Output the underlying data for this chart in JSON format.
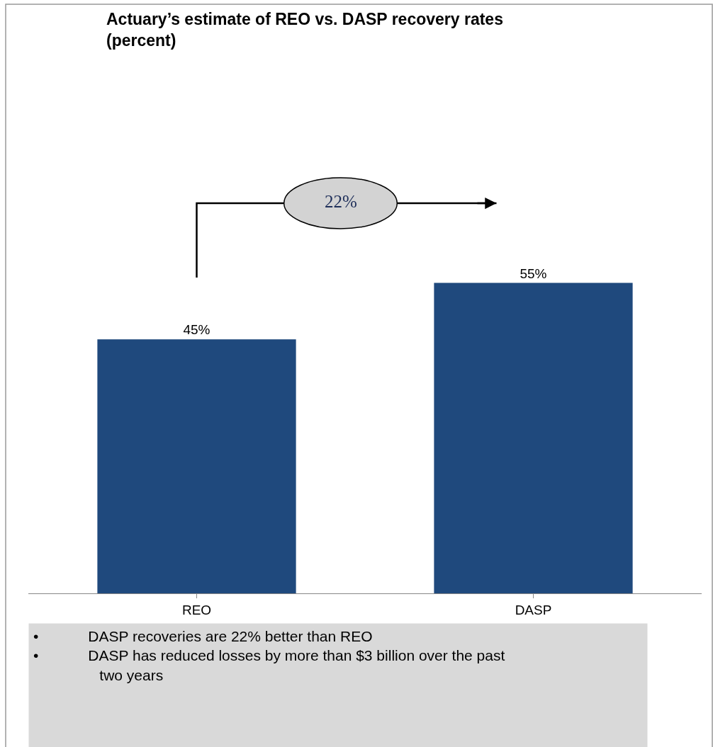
{
  "chart_data": {
    "type": "bar",
    "title": "Actuary’s estimate of REO vs. DASP recovery rates (percent)",
    "categories": [
      "REO",
      "DASP"
    ],
    "values": [
      45,
      55
    ],
    "value_labels": [
      "45%",
      "55%"
    ],
    "color": "#1f497d",
    "annotations": [
      "22%",
      "• DASP recoveries are 22% better than REO",
      "• DASP has reduced losses by more than $3 billion over the past two years"
    ]
  }
}
